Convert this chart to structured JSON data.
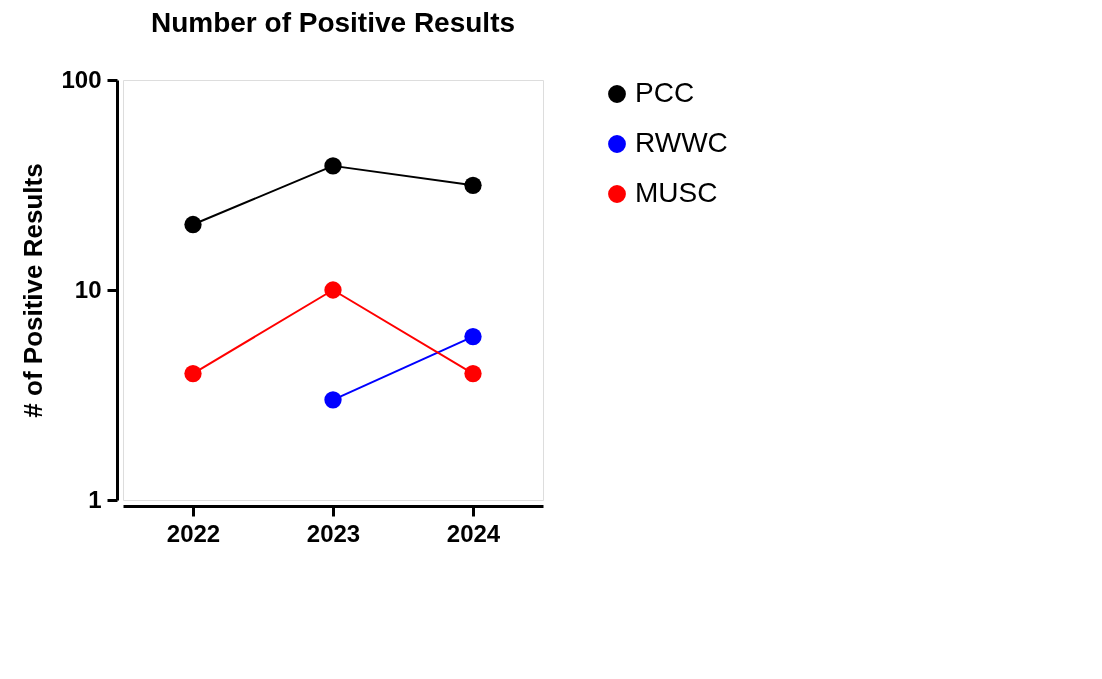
{
  "chart_data": {
    "type": "line",
    "title": "Number of Positive Results",
    "ylabel": "# of Positive Results",
    "categories": [
      "2022",
      "2023",
      "2024"
    ],
    "series": [
      {
        "name": "PCC",
        "color": "#000000",
        "values": [
          20.5,
          39,
          31.5
        ]
      },
      {
        "name": "RWWC",
        "color": "#0000ff",
        "values": [
          null,
          3,
          6
        ]
      },
      {
        "name": "MUSC",
        "color": "#ff0000",
        "values": [
          4,
          10,
          4
        ]
      }
    ],
    "log": "y",
    "ylim": [
      1,
      100
    ],
    "yticks": [
      1,
      10,
      100
    ],
    "grid": false,
    "legend": "right",
    "marker": "circle",
    "line_style": "solid"
  }
}
